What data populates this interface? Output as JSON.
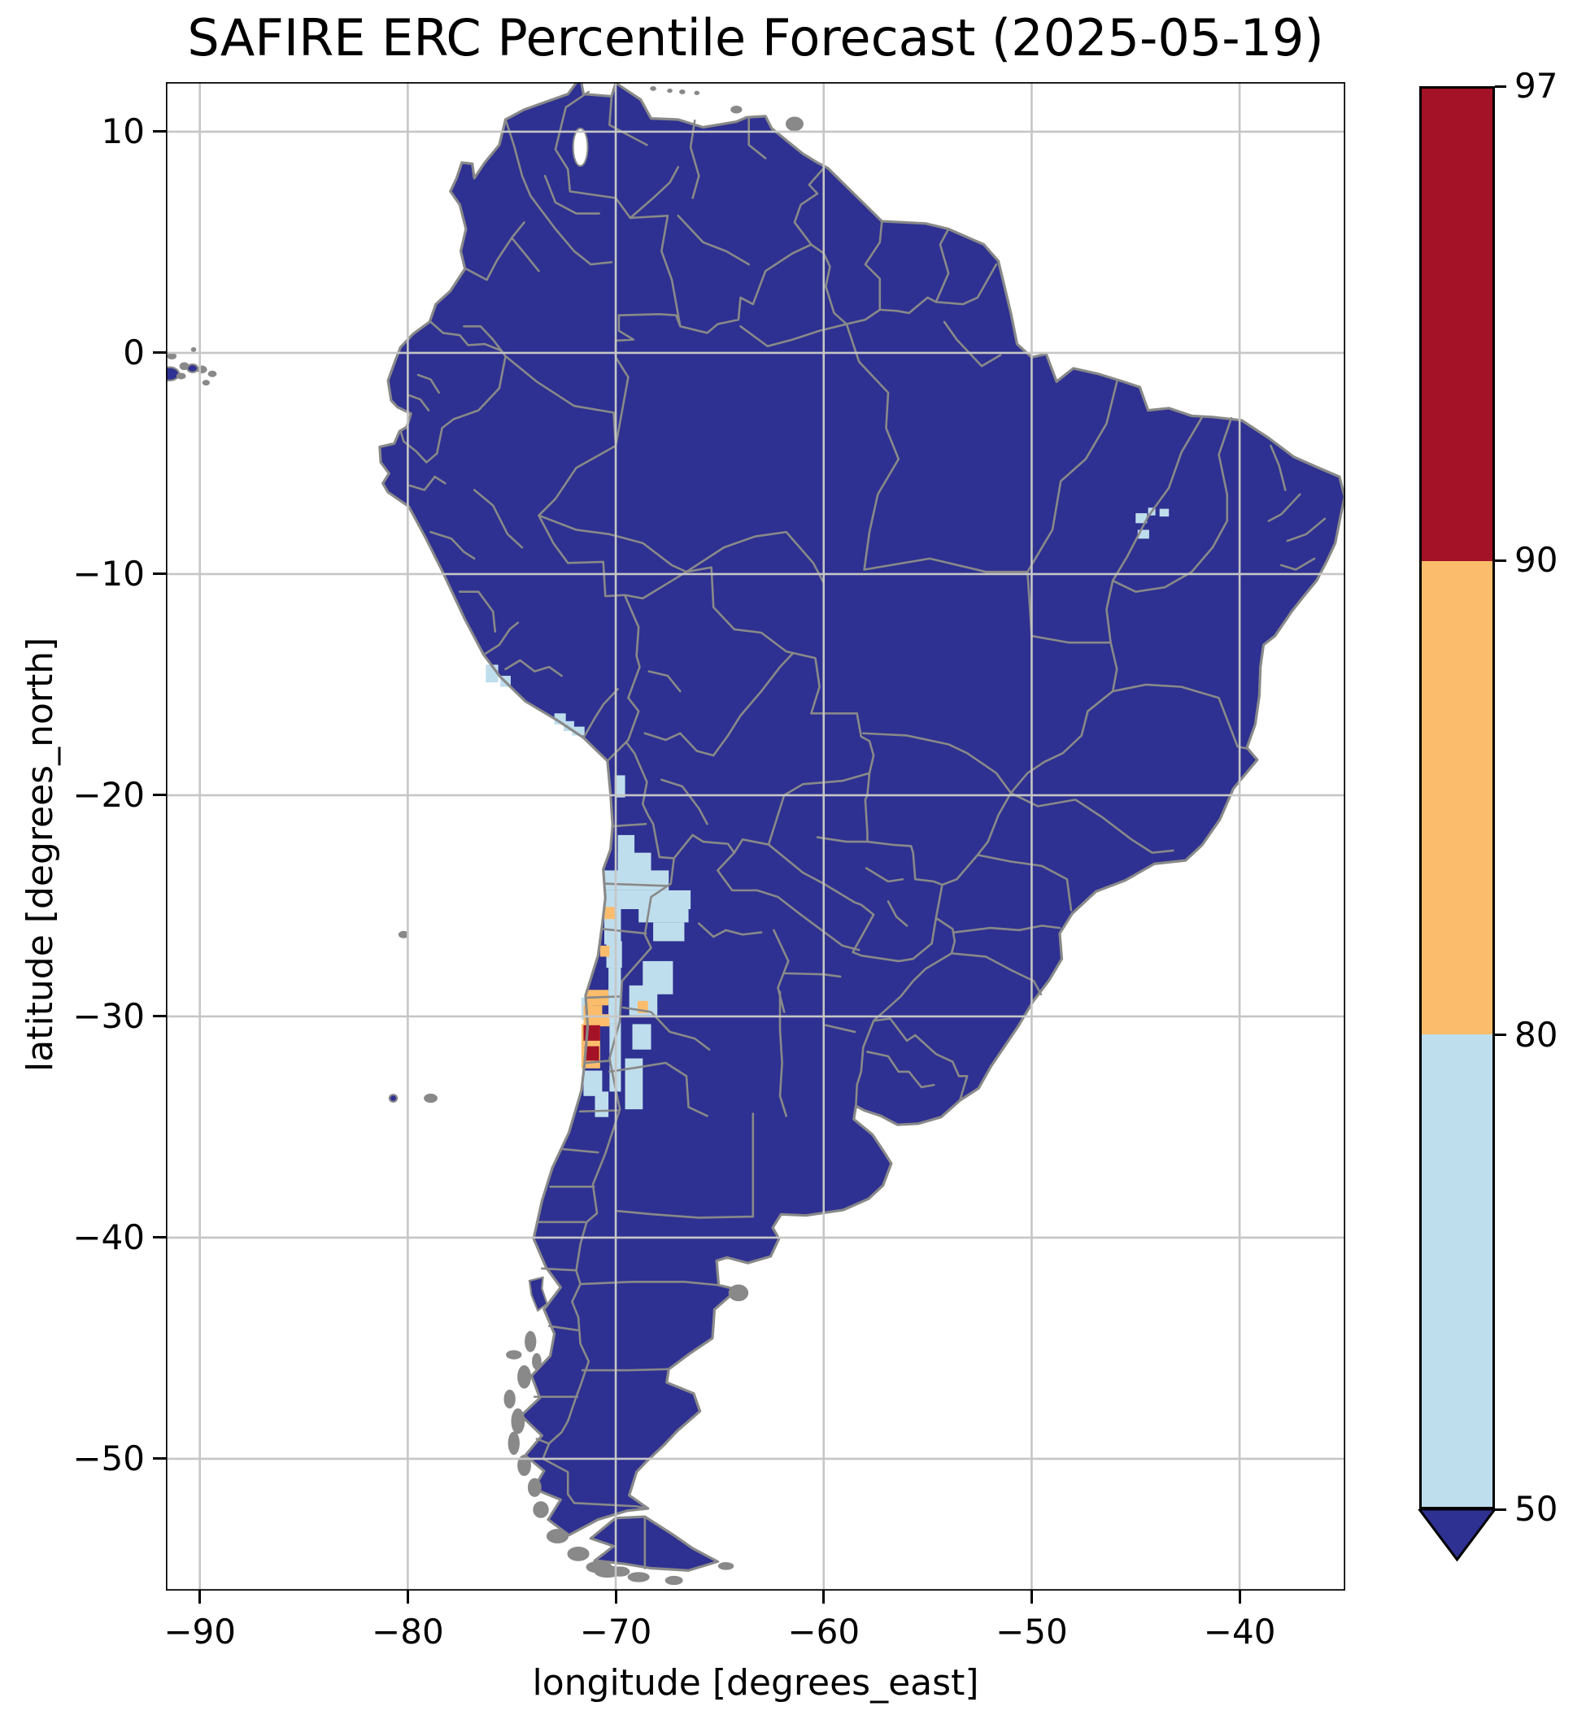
{
  "title": "SAFIRE ERC Percentile Forecast (2025-05-19)",
  "axes": {
    "xlabel": "longitude [degrees_east]",
    "ylabel": "latitude [degrees_north]",
    "x_tick_labels": [
      "−90",
      "−80",
      "−70",
      "−60",
      "−50",
      "−40"
    ],
    "x_tick_lons": [
      -90,
      -80,
      -70,
      -60,
      -50,
      -40
    ],
    "y_tick_labels": [
      "10",
      "0",
      "−10",
      "−20",
      "−30",
      "−40",
      "−50"
    ],
    "y_tick_lats": [
      10,
      0,
      -10,
      -20,
      -30,
      -40,
      -50
    ],
    "lon_range": [
      -91.63,
      -34.92
    ],
    "lat_range": [
      -55.96,
      12.24
    ],
    "grid": true
  },
  "colorbar": {
    "tick_labels": [
      "97",
      "90",
      "80",
      "50"
    ],
    "levels": [
      50,
      80,
      90,
      97
    ],
    "segment_colors_top_to_bottom": [
      "#a31227",
      "#fbbd6c",
      "#bfdeed"
    ],
    "extend": "min",
    "extend_below_color": "#2e3191"
  },
  "colors": {
    "land_below_50": "#2e3191",
    "percentile_50_80": "#bfdeed",
    "percentile_80_90": "#fbbd6c",
    "percentile_90_97": "#a31227",
    "borders": "#898989",
    "grid": "#c6c6c6",
    "frame": "#000000",
    "background": "#ffffff"
  },
  "chart_data": {
    "type": "heatmap",
    "title": "SAFIRE ERC Percentile Forecast (2025-05-19)",
    "xlabel": "longitude [degrees_east]",
    "ylabel": "latitude [degrees_north]",
    "xlim": [
      -91.63,
      -34.92
    ],
    "ylim": [
      -55.96,
      12.24
    ],
    "x_ticks": [
      -90,
      -80,
      -70,
      -60,
      -50,
      -40
    ],
    "y_ticks": [
      10,
      0,
      -10,
      -20,
      -30,
      -40,
      -50
    ],
    "grid": true,
    "legend_position": "right-colorbar",
    "colorbar_levels": [
      50,
      80,
      90,
      97
    ],
    "colorbar_extend": "min",
    "field": "ERC percentile class per ~0.75 degree cell",
    "baseline": "all other land cells below 50th percentile (navy)",
    "cells_50_80": [
      [
        -70.05,
        -19.1,
        0.5,
        1.0
      ],
      [
        -69.9,
        -21.8,
        0.8,
        1.7
      ],
      [
        -69.9,
        -22.6,
        1.6,
        0.9
      ],
      [
        -70.55,
        -23.4,
        3.1,
        0.9
      ],
      [
        -70.55,
        -24.3,
        4.15,
        0.85
      ],
      [
        -70.55,
        -25.15,
        0.8,
        1.6
      ],
      [
        -68.9,
        -24.45,
        2.4,
        1.3
      ],
      [
        -68.2,
        -25.75,
        1.5,
        0.85
      ],
      [
        -70.45,
        -26.6,
        0.75,
        1.2
      ],
      [
        -68.7,
        -27.5,
        1.45,
        1.5
      ],
      [
        -69.35,
        -28.6,
        1.35,
        1.35
      ],
      [
        -70.35,
        -27.8,
        0.6,
        2.5
      ],
      [
        -70.3,
        -30.3,
        0.55,
        3.1
      ],
      [
        -71.65,
        -29.15,
        0.55,
        1.0
      ],
      [
        -71.55,
        -32.45,
        0.9,
        1.15
      ],
      [
        -71.0,
        -33.4,
        0.65,
        1.15
      ],
      [
        -69.2,
        -30.35,
        0.9,
        1.15
      ],
      [
        -69.55,
        -31.9,
        0.85,
        2.3
      ],
      [
        -45.0,
        -7.25,
        0.55,
        0.45
      ],
      [
        -44.4,
        -7.0,
        0.35,
        0.35
      ],
      [
        -43.85,
        -7.05,
        0.45,
        0.35
      ],
      [
        -44.9,
        -8.0,
        0.55,
        0.4
      ],
      [
        -76.25,
        -14.1,
        0.6,
        0.8
      ],
      [
        -75.55,
        -14.6,
        0.5,
        0.5
      ],
      [
        -72.95,
        -16.3,
        0.55,
        0.5
      ],
      [
        -72.5,
        -16.65,
        0.5,
        0.45
      ],
      [
        -72.1,
        -16.9,
        0.6,
        0.4
      ]
    ],
    "cells_80_90": [
      [
        -70.55,
        -25.05,
        0.5,
        0.55
      ],
      [
        -70.75,
        -26.8,
        0.45,
        0.5
      ],
      [
        -71.45,
        -28.8,
        1.1,
        0.7
      ],
      [
        -71.55,
        -29.5,
        0.9,
        0.9
      ],
      [
        -71.65,
        -30.35,
        0.9,
        2.0
      ],
      [
        -70.75,
        -29.9,
        0.45,
        0.55
      ],
      [
        -68.95,
        -29.3,
        0.5,
        0.55
      ]
    ],
    "cells_90_97": [
      [
        -71.55,
        -30.4,
        0.8,
        0.7
      ],
      [
        -71.5,
        -31.35,
        0.7,
        0.65
      ]
    ]
  }
}
